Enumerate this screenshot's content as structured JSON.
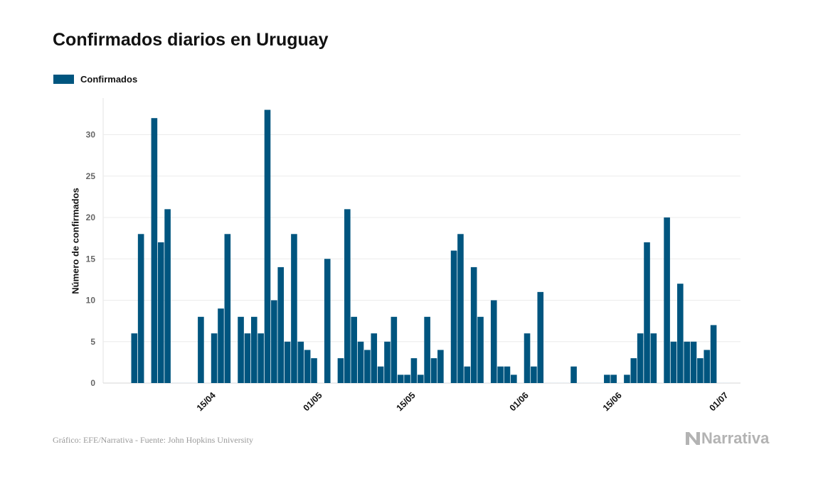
{
  "chart_data": {
    "type": "bar",
    "title": "Confirmados diarios en Uruguay",
    "ylabel": "Número de confirmados",
    "xlabel": "",
    "ylim": [
      0,
      35
    ],
    "yticks": [
      0,
      5,
      10,
      15,
      20,
      25,
      30
    ],
    "grid": true,
    "legend_position": "top-left",
    "x_tick_labels": [
      "15/04",
      "01/05",
      "15/05",
      "01/06",
      "15/06",
      "01/07"
    ],
    "x_tick_dates": [
      "2020-04-15",
      "2020-05-01",
      "2020-05-15",
      "2020-06-01",
      "2020-06-15",
      "2020-07-01"
    ],
    "series": [
      {
        "name": "Confirmados",
        "color": "#00557f",
        "x": [
          "2020-04-04",
          "2020-04-05",
          "2020-04-06",
          "2020-04-07",
          "2020-04-08",
          "2020-04-09",
          "2020-04-10",
          "2020-04-11",
          "2020-04-12",
          "2020-04-13",
          "2020-04-14",
          "2020-04-15",
          "2020-04-16",
          "2020-04-17",
          "2020-04-18",
          "2020-04-19",
          "2020-04-20",
          "2020-04-21",
          "2020-04-22",
          "2020-04-23",
          "2020-04-24",
          "2020-04-25",
          "2020-04-26",
          "2020-04-27",
          "2020-04-28",
          "2020-04-29",
          "2020-04-30",
          "2020-05-01",
          "2020-05-02",
          "2020-05-03",
          "2020-05-04",
          "2020-05-05",
          "2020-05-06",
          "2020-05-07",
          "2020-05-08",
          "2020-05-09",
          "2020-05-10",
          "2020-05-11",
          "2020-05-12",
          "2020-05-13",
          "2020-05-14",
          "2020-05-15",
          "2020-05-16",
          "2020-05-17",
          "2020-05-18",
          "2020-05-19",
          "2020-05-20",
          "2020-05-21",
          "2020-05-22",
          "2020-05-23",
          "2020-05-24",
          "2020-05-25",
          "2020-05-26",
          "2020-05-27",
          "2020-05-28",
          "2020-05-29",
          "2020-05-30",
          "2020-05-31",
          "2020-06-01",
          "2020-06-02",
          "2020-06-03",
          "2020-06-04",
          "2020-06-05",
          "2020-06-06",
          "2020-06-07",
          "2020-06-08",
          "2020-06-09",
          "2020-06-10",
          "2020-06-11",
          "2020-06-12",
          "2020-06-13",
          "2020-06-14",
          "2020-06-15",
          "2020-06-16",
          "2020-06-17",
          "2020-06-18",
          "2020-06-19",
          "2020-06-20",
          "2020-06-21",
          "2020-06-22",
          "2020-06-23",
          "2020-06-24",
          "2020-06-25",
          "2020-06-26",
          "2020-06-27",
          "2020-06-28",
          "2020-06-29",
          "2020-06-30",
          "2020-07-01",
          "2020-07-02"
        ],
        "values": [
          6,
          18,
          0,
          32,
          17,
          21,
          0,
          0,
          0,
          0,
          8,
          0,
          6,
          9,
          18,
          0,
          8,
          6,
          8,
          6,
          33,
          10,
          14,
          5,
          18,
          5,
          4,
          3,
          0,
          15,
          0,
          3,
          21,
          8,
          5,
          4,
          6,
          2,
          5,
          8,
          1,
          1,
          3,
          1,
          8,
          3,
          4,
          0,
          16,
          18,
          2,
          14,
          8,
          0,
          10,
          2,
          2,
          1,
          0,
          6,
          2,
          11,
          0,
          0,
          0,
          0,
          2,
          0,
          0,
          0,
          0,
          1,
          1,
          0,
          1,
          3,
          6,
          17,
          6,
          0,
          20,
          5,
          12,
          5,
          5,
          3,
          4,
          7,
          0,
          0
        ]
      }
    ]
  },
  "footer": {
    "source": "Gráfico: EFE/Narrativa - Fuente: John Hopkins University",
    "brand": "Narrativa"
  }
}
